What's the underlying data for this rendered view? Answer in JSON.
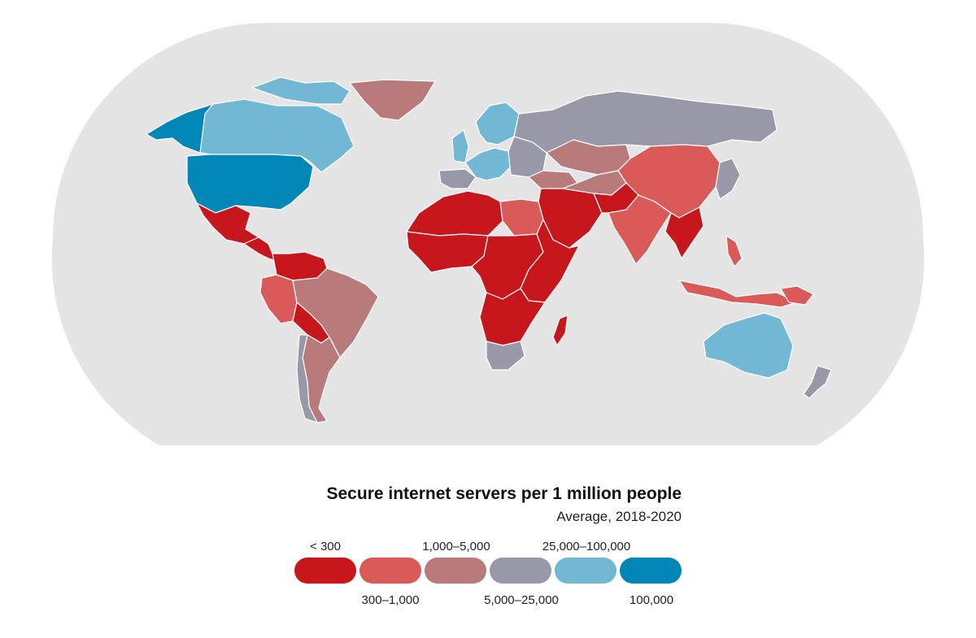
{
  "legend": {
    "title": "Secure internet servers per 1 million people",
    "subtitle": "Average, 2018-2020",
    "classes": [
      {
        "label": "< 300",
        "color": "#c8161d"
      },
      {
        "label": "300–1,000",
        "color": "#d95a58"
      },
      {
        "label": "1,000–5,000",
        "color": "#b97a7b"
      },
      {
        "label": "5,000–25,000",
        "color": "#9898a8"
      },
      {
        "label": "25,000–100,000",
        "color": "#72b7d3"
      },
      {
        "label": "100,000",
        "color": "#0087b7"
      }
    ]
  },
  "map": {
    "ocean_color": "#e4e4e4",
    "regions": [
      {
        "name": "alaska",
        "class": 5
      },
      {
        "name": "canada",
        "class": 4
      },
      {
        "name": "arctic-islands",
        "class": 4
      },
      {
        "name": "greenland",
        "class": 2
      },
      {
        "name": "united-states",
        "class": 5
      },
      {
        "name": "mexico",
        "class": 0
      },
      {
        "name": "central-america",
        "class": 0
      },
      {
        "name": "colombia-venezuela",
        "class": 0
      },
      {
        "name": "peru-ecuador",
        "class": 1
      },
      {
        "name": "brazil",
        "class": 2
      },
      {
        "name": "bolivia-paraguay",
        "class": 0
      },
      {
        "name": "argentina",
        "class": 2
      },
      {
        "name": "chile",
        "class": 3
      },
      {
        "name": "uk-ireland",
        "class": 4
      },
      {
        "name": "scandinavia",
        "class": 4
      },
      {
        "name": "western-europe",
        "class": 4
      },
      {
        "name": "iberia",
        "class": 3
      },
      {
        "name": "eastern-europe",
        "class": 3
      },
      {
        "name": "russia",
        "class": 3
      },
      {
        "name": "kazakhstan-central-asia",
        "class": 2
      },
      {
        "name": "north-africa",
        "class": 0
      },
      {
        "name": "libya-egypt",
        "class": 1
      },
      {
        "name": "west-africa",
        "class": 0
      },
      {
        "name": "central-africa",
        "class": 0
      },
      {
        "name": "east-africa",
        "class": 0
      },
      {
        "name": "southern-africa",
        "class": 0
      },
      {
        "name": "south-africa",
        "class": 3
      },
      {
        "name": "madagascar",
        "class": 0
      },
      {
        "name": "turkey",
        "class": 2
      },
      {
        "name": "middle-east",
        "class": 0
      },
      {
        "name": "iran",
        "class": 2
      },
      {
        "name": "pakistan-afghanistan",
        "class": 0
      },
      {
        "name": "india",
        "class": 1
      },
      {
        "name": "china",
        "class": 1
      },
      {
        "name": "korea-japan",
        "class": 3
      },
      {
        "name": "southeast-asia",
        "class": 0
      },
      {
        "name": "indonesia",
        "class": 1
      },
      {
        "name": "philippines",
        "class": 1
      },
      {
        "name": "papua-new-guinea",
        "class": 1
      },
      {
        "name": "australia",
        "class": 4
      },
      {
        "name": "new-zealand",
        "class": 3
      }
    ]
  }
}
